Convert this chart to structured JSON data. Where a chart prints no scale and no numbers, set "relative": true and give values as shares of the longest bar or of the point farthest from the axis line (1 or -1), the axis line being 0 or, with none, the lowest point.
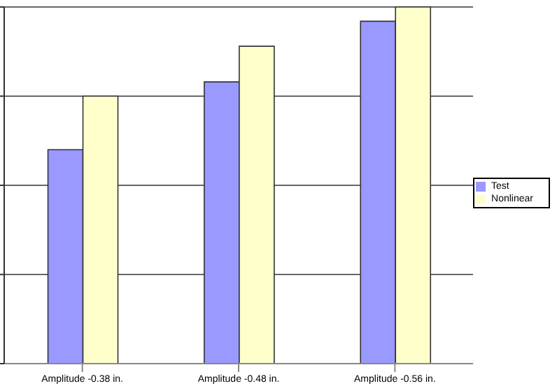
{
  "chart_data": {
    "type": "bar",
    "relative": true,
    "categories": [
      "Amplitude -0.38 in.",
      "Amplitude -0.48 in.",
      "Amplitude -0.56 in."
    ],
    "series": [
      {
        "name": "Test",
        "color": "#9999ff",
        "values": [
          0.6,
          0.79,
          0.96
        ]
      },
      {
        "name": "Nonlinear",
        "color": "#ffffcc",
        "values": [
          0.75,
          0.89,
          1
        ]
      }
    ],
    "grid": "y",
    "legend": "right"
  }
}
